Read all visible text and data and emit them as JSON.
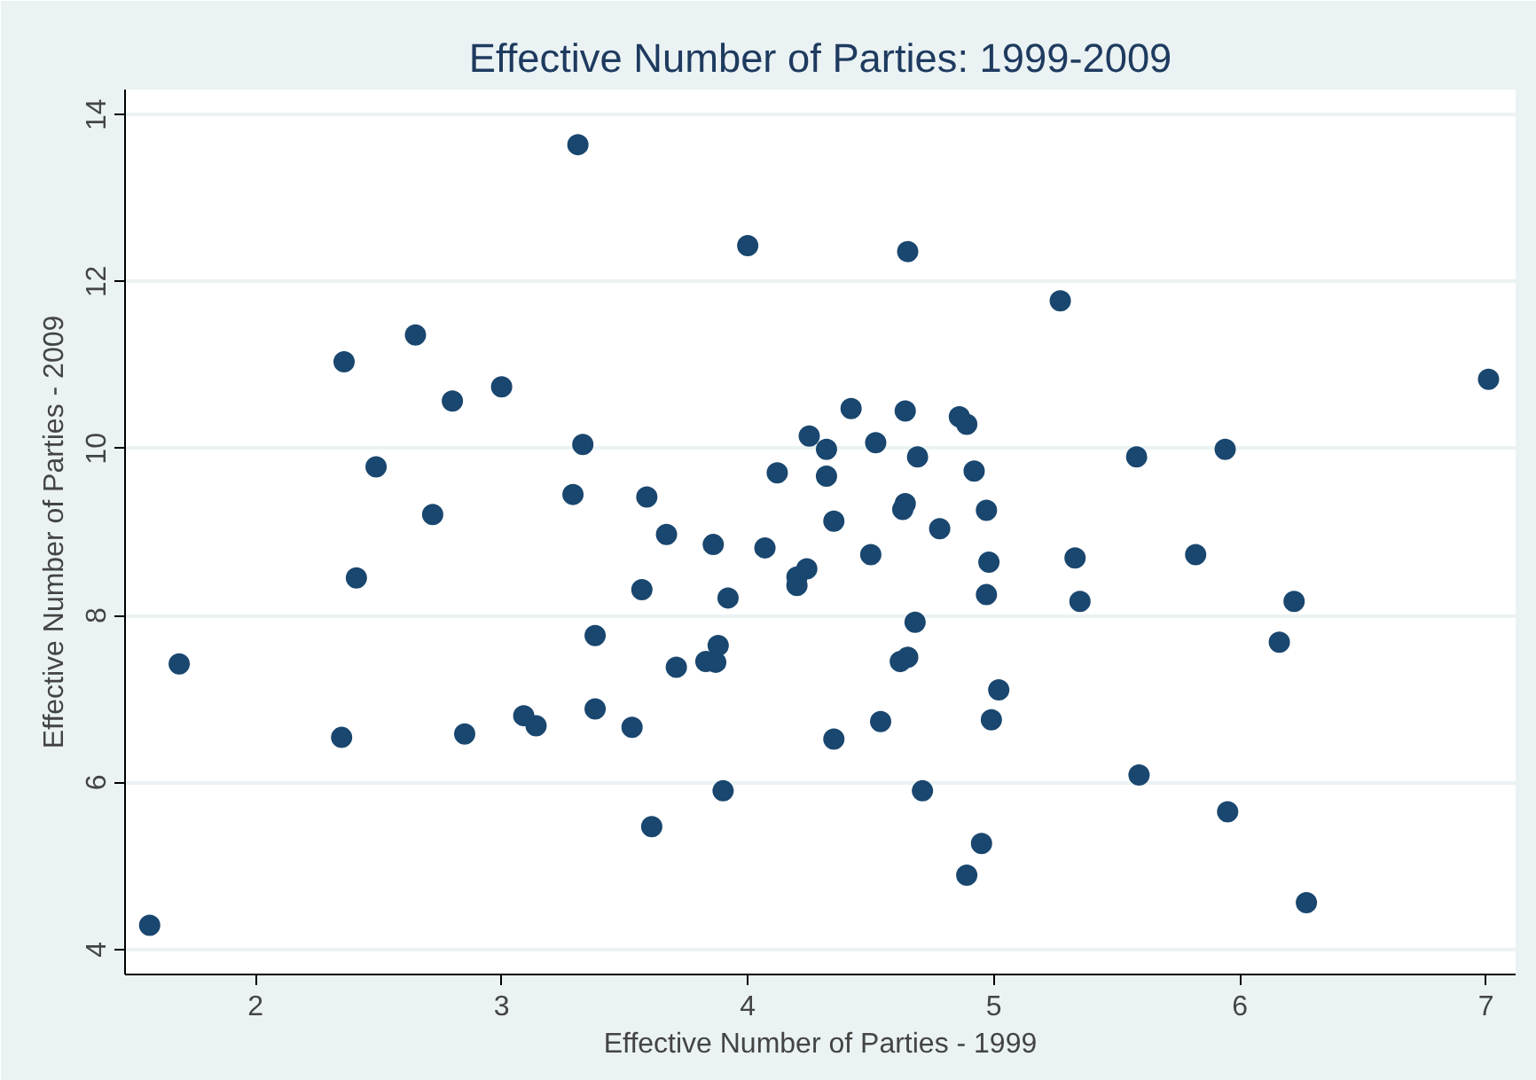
{
  "chart_data": {
    "type": "scatter",
    "title": "Effective Number of Parties: 1999-2009",
    "xlabel": "Effective Number of Parties - 1999",
    "ylabel": "Effective Number of Parties - 2009",
    "x": [
      3.31,
      2.36,
      2.65,
      2.8,
      3.0,
      3.33,
      2.49,
      3.29,
      2.72,
      2.41,
      1.69,
      2.35,
      2.85,
      3.09,
      3.14,
      1.57,
      4.0,
      4.65,
      4.42,
      4.64,
      4.86,
      4.89,
      4.25,
      4.32,
      4.52,
      4.69,
      4.12,
      4.32,
      4.92,
      3.59,
      4.64,
      4.63,
      4.97,
      4.35,
      4.78,
      3.67,
      3.86,
      4.07,
      4.5,
      4.98,
      4.24,
      4.2,
      4.2,
      3.57,
      4.97,
      3.92,
      3.38,
      4.68,
      4.65,
      4.62,
      3.88,
      3.83,
      3.87,
      3.71,
      5.02,
      3.38,
      3.53,
      4.54,
      4.99,
      4.35,
      3.9,
      4.71,
      3.61,
      4.95,
      4.89,
      5.27,
      7.01,
      5.58,
      5.94,
      5.33,
      5.82,
      5.35,
      6.22,
      6.16,
      5.59,
      5.95,
      6.27
    ],
    "series": [
      {
        "color": "#1a476f",
        "values": [
          13.64,
          11.04,
          11.36,
          10.57,
          10.74,
          10.05,
          9.78,
          9.45,
          9.21,
          8.45,
          7.42,
          6.54,
          6.58,
          6.8,
          6.68,
          4.29,
          12.43,
          12.36,
          10.48,
          10.45,
          10.38,
          10.29,
          10.15,
          9.99,
          10.07,
          9.9,
          9.71,
          9.67,
          9.73,
          9.42,
          9.34,
          9.27,
          9.26,
          9.13,
          9.04,
          8.97,
          8.85,
          8.81,
          8.73,
          8.64,
          8.56,
          8.46,
          8.36,
          8.31,
          8.25,
          8.21,
          7.76,
          7.92,
          7.5,
          7.45,
          7.64,
          7.45,
          7.44,
          7.38,
          7.11,
          6.88,
          6.66,
          6.73,
          6.75,
          6.52,
          5.9,
          5.9,
          5.47,
          5.27,
          4.89,
          11.77,
          10.83,
          9.9,
          9.99,
          8.69,
          8.73,
          8.17,
          8.17,
          7.68,
          6.09,
          5.65,
          4.56
        ]
      }
    ],
    "xlim": [
      1.47,
      7.12
    ],
    "ylim": [
      3.7,
      14.3
    ],
    "xticks": [
      2,
      3,
      4,
      5,
      6,
      7
    ],
    "yticks": [
      4,
      6,
      8,
      10,
      12,
      14
    ],
    "grid": "y"
  }
}
